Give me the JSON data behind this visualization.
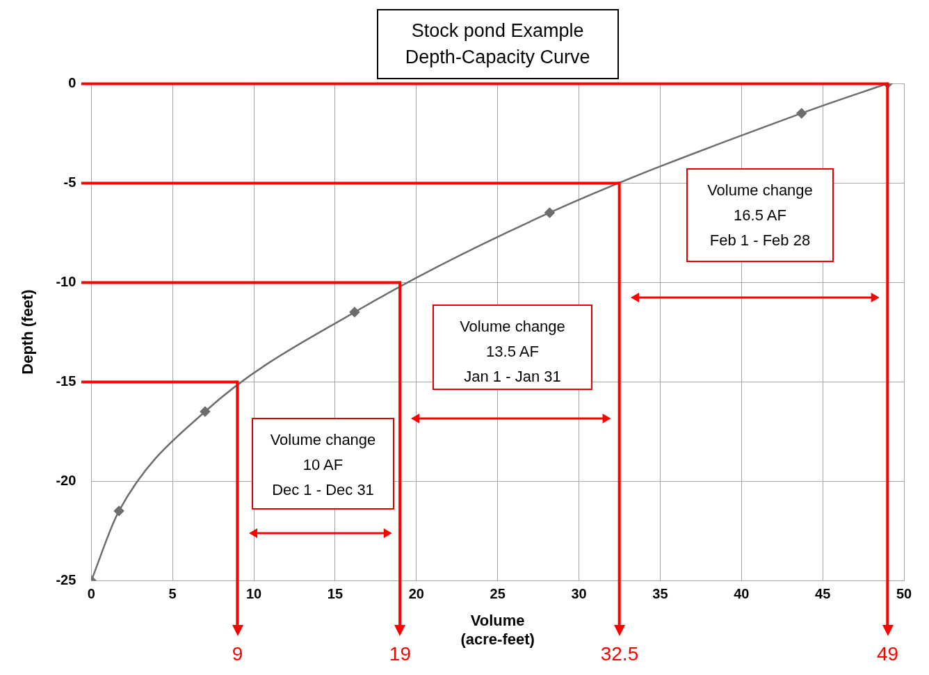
{
  "chart_data": {
    "type": "line",
    "title": "Stock pond Example\nDepth-Capacity Curve",
    "xlabel": "Volume\n(acre-feet)",
    "ylabel": "Depth (feet)",
    "x": [
      0,
      1.7,
      7,
      16.2,
      28.2,
      43.7,
      49
    ],
    "series": [
      {
        "color": "#6d6d6d",
        "values": [
          -25,
          -21.5,
          -16.5,
          -11.5,
          -6.5,
          -1.5,
          0
        ]
      }
    ],
    "xlim": [
      0,
      50
    ],
    "xticks": [
      0,
      5,
      10,
      15,
      20,
      25,
      30,
      35,
      40,
      45,
      50
    ],
    "ylim": [
      -25,
      0
    ],
    "yticks": [
      -25,
      -20,
      -15,
      -10,
      -5,
      0
    ],
    "grid": true,
    "marker": "diamond",
    "ref_lines": [
      {
        "axis": "y",
        "value": -15,
        "color": "#ff0000"
      },
      {
        "axis": "y",
        "value": -10,
        "color": "#ff0000"
      },
      {
        "axis": "y",
        "value": -5,
        "color": "#ff0000"
      },
      {
        "axis": "y",
        "value": 0,
        "color": "#ff0000"
      },
      {
        "axis": "x",
        "value": 9,
        "label": "9",
        "color": "#ff0000"
      },
      {
        "axis": "x",
        "value": 19,
        "label": "19",
        "color": "#ff0000"
      },
      {
        "axis": "x",
        "value": 32.5,
        "label": "32.5",
        "color": "#ff0000"
      },
      {
        "axis": "x",
        "value": 49,
        "label": "49",
        "color": "#ff0000"
      }
    ],
    "annotations": [
      "Volume change\n10 AF\nDec 1 - Dec 31",
      "Volume change\n13.5 AF\nJan 1 - Jan 31",
      "Volume change\n16.5 AF\nFeb 1 - Feb 28"
    ]
  }
}
